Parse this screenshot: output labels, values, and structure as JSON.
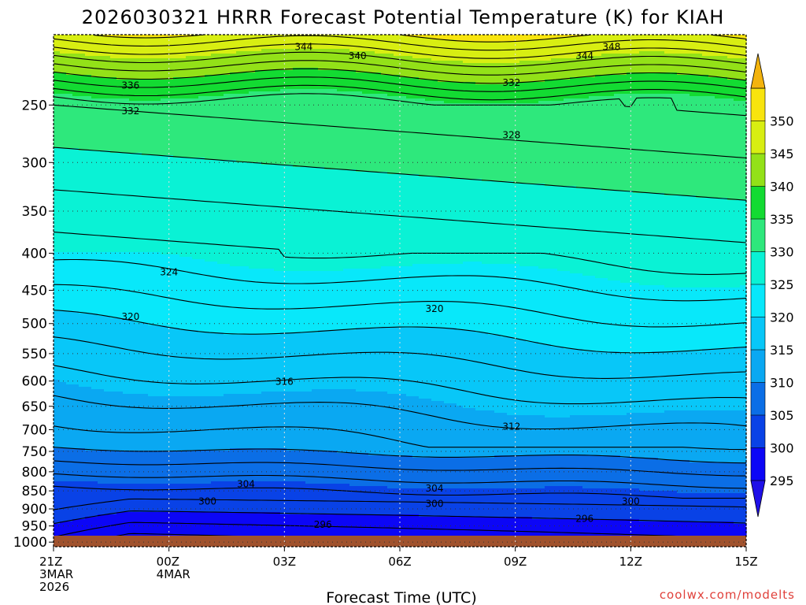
{
  "title": "2026030321 HRRR Forecast Potential Temperature (K) for KIAH",
  "credit": "coolwx.com/modelts",
  "colors": {
    "ground": "#a0522d",
    "contour": "#000000",
    "grid": "#333333",
    "credit": "#e0403a"
  },
  "chart_data": {
    "type": "heatmap",
    "title": "2026030321 HRRR Forecast Potential Temperature (K) for KIAH",
    "xlabel": "Forecast Time (UTC)",
    "ylabel": "",
    "x_ticks": [
      {
        "hour": 0,
        "lines": [
          "21Z",
          "3MAR",
          "2026"
        ]
      },
      {
        "hour": 3,
        "lines": [
          "00Z",
          "4MAR"
        ]
      },
      {
        "hour": 6,
        "lines": [
          "03Z"
        ]
      },
      {
        "hour": 9,
        "lines": [
          "06Z"
        ]
      },
      {
        "hour": 12,
        "lines": [
          "09Z"
        ]
      },
      {
        "hour": 15,
        "lines": [
          "12Z"
        ]
      },
      {
        "hour": 18,
        "lines": [
          "15Z"
        ]
      }
    ],
    "xlim": [
      0,
      18
    ],
    "y_ticks": [
      250,
      300,
      350,
      400,
      450,
      500,
      550,
      600,
      650,
      700,
      750,
      800,
      850,
      900,
      950,
      1000
    ],
    "ylim_hPa": [
      1030,
      200
    ],
    "y_scale": "log-pressure",
    "grid": "dotted",
    "colorbar": {
      "labels": [
        295,
        300,
        305,
        310,
        315,
        320,
        325,
        330,
        335,
        340,
        345,
        350
      ],
      "bins": [
        {
          "lo": 290,
          "hi": 295,
          "color": "#1f10e8"
        },
        {
          "lo": 295,
          "hi": 300,
          "color": "#0c06f6"
        },
        {
          "lo": 300,
          "hi": 305,
          "color": "#0942e6"
        },
        {
          "lo": 305,
          "hi": 310,
          "color": "#0b6ee6"
        },
        {
          "lo": 310,
          "hi": 315,
          "color": "#0aa8f2"
        },
        {
          "lo": 315,
          "hi": 320,
          "color": "#08c7f8"
        },
        {
          "lo": 320,
          "hi": 325,
          "color": "#08e8fa"
        },
        {
          "lo": 325,
          "hi": 330,
          "color": "#0af2d5"
        },
        {
          "lo": 330,
          "hi": 335,
          "color": "#2ee87c"
        },
        {
          "lo": 335,
          "hi": 340,
          "color": "#13db32"
        },
        {
          "lo": 340,
          "hi": 345,
          "color": "#93e118"
        },
        {
          "lo": 345,
          "hi": 350,
          "color": "#d8ee12"
        },
        {
          "lo": 350,
          "hi": 355,
          "color": "#f8e40e"
        },
        {
          "lo": 355,
          "hi": 360,
          "color": "#f3b30d"
        }
      ],
      "extend": "both"
    },
    "contour_interval_K": 2,
    "contour_labels": [
      {
        "value": 348,
        "hour": 14.5,
        "p": 208
      },
      {
        "value": 344,
        "hour": 6.5,
        "p": 208
      },
      {
        "value": 344,
        "hour": 13.8,
        "p": 214
      },
      {
        "value": 340,
        "hour": 7.9,
        "p": 214
      },
      {
        "value": 336,
        "hour": 2.0,
        "p": 235
      },
      {
        "value": 332,
        "hour": 11.9,
        "p": 233
      },
      {
        "value": 332,
        "hour": 2.0,
        "p": 255
      },
      {
        "value": 328,
        "hour": 11.9,
        "p": 275
      },
      {
        "value": 324,
        "hour": 3.0,
        "p": 425
      },
      {
        "value": 320,
        "hour": 2.0,
        "p": 489
      },
      {
        "value": 320,
        "hour": 9.9,
        "p": 477
      },
      {
        "value": 316,
        "hour": 6.0,
        "p": 601
      },
      {
        "value": 312,
        "hour": 11.9,
        "p": 693
      },
      {
        "value": 304,
        "hour": 5.0,
        "p": 832
      },
      {
        "value": 304,
        "hour": 9.9,
        "p": 843
      },
      {
        "value": 300,
        "hour": 4.0,
        "p": 879
      },
      {
        "value": 300,
        "hour": 9.9,
        "p": 886
      },
      {
        "value": 300,
        "hour": 15.0,
        "p": 879
      },
      {
        "value": 296,
        "hour": 7.0,
        "p": 946
      },
      {
        "value": 296,
        "hour": 13.8,
        "p": 928
      }
    ]
  }
}
